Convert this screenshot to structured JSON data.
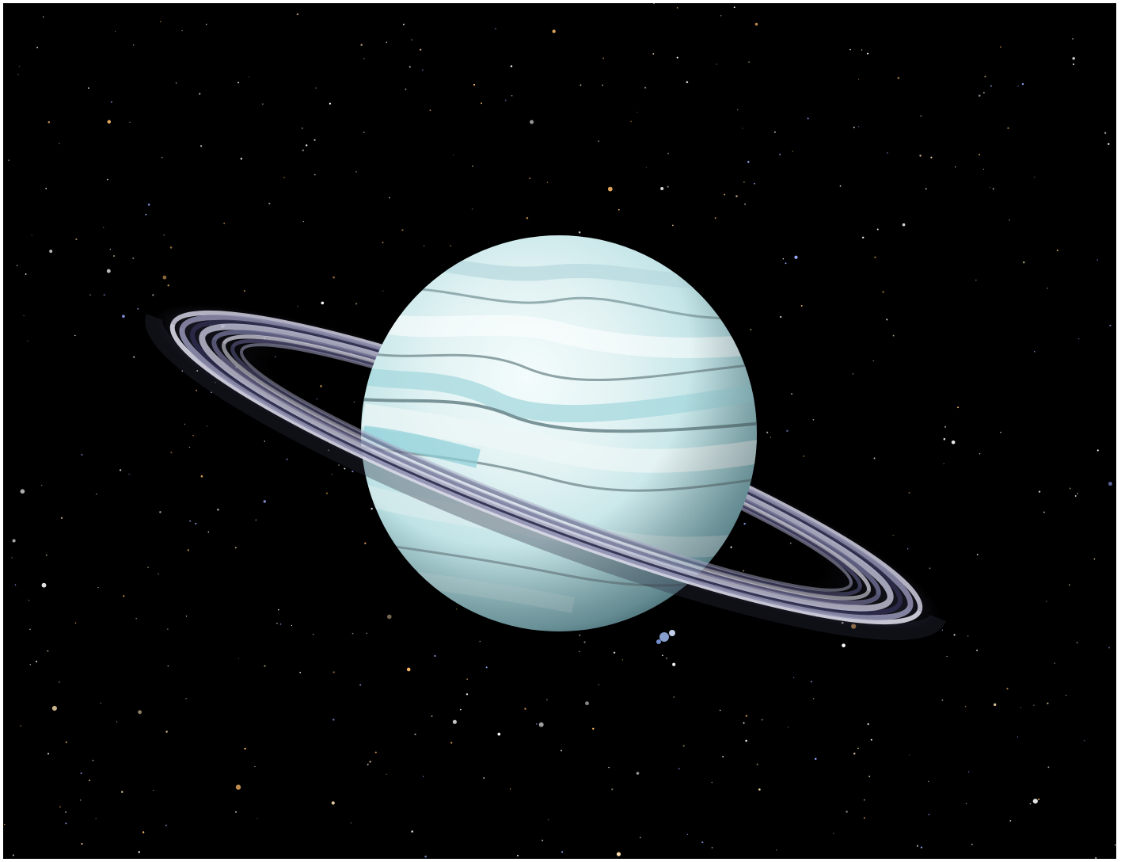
{
  "scene": {
    "subject": "ringed-ice-giant-planet",
    "background_color": "#000000",
    "colors": {
      "planet_light": "#f2fbfb",
      "planet_mid": "#d3ecef",
      "planet_cyan": "#9fd5db",
      "planet_shadow": "#6f9aa3",
      "band_dark": "#7d9498",
      "ring_light": "#d9d9e8",
      "ring_mid": "#8f8fb0",
      "ring_dark": "#3a3a5e",
      "star_white": "#ffffff",
      "star_orange": "#ffbb66",
      "star_blue": "#99aaff"
    },
    "star_count": 520
  }
}
